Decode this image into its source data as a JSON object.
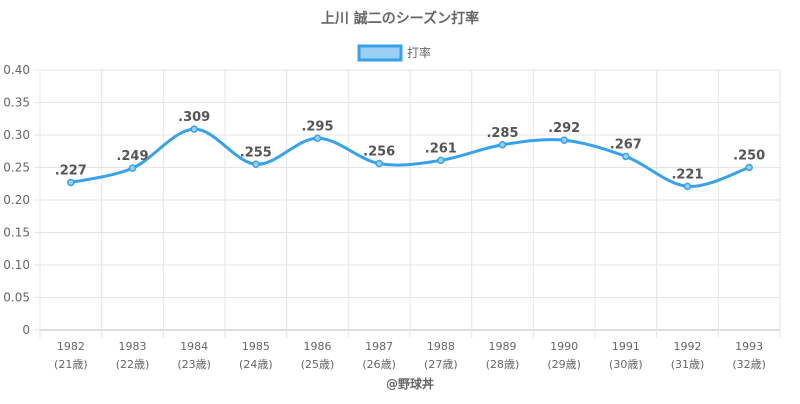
{
  "chart_data": {
    "type": "line",
    "title": "上川 誠二のシーズン打率",
    "legend": {
      "label": "打率",
      "placement": "top-center"
    },
    "categories": [
      "1982",
      "1983",
      "1984",
      "1985",
      "1986",
      "1987",
      "1988",
      "1989",
      "1990",
      "1991",
      "1992",
      "1993"
    ],
    "sublabels": [
      "(21歳)",
      "(22歳)",
      "(23歳)",
      "(24歳)",
      "(25歳)",
      "(26歳)",
      "(27歳)",
      "(28歳)",
      "(29歳)",
      "(30歳)",
      "(31歳)",
      "(32歳)"
    ],
    "series": [
      {
        "name": "打率",
        "values": [
          0.227,
          0.249,
          0.309,
          0.255,
          0.295,
          0.256,
          0.261,
          0.285,
          0.292,
          0.267,
          0.221,
          0.25
        ],
        "labels": [
          ".227",
          ".249",
          ".309",
          ".255",
          ".295",
          ".256",
          ".261",
          ".285",
          ".292",
          ".267",
          ".221",
          ".250"
        ]
      }
    ],
    "ylim": [
      0,
      0.4
    ],
    "yticks": [
      "0",
      "0.05",
      "0.10",
      "0.15",
      "0.20",
      "0.25",
      "0.30",
      "0.35",
      "0.40"
    ],
    "grid": true,
    "colors": {
      "line": "#36a2eb",
      "fill": "#9ad0f5"
    },
    "credit": "@野球丼"
  }
}
